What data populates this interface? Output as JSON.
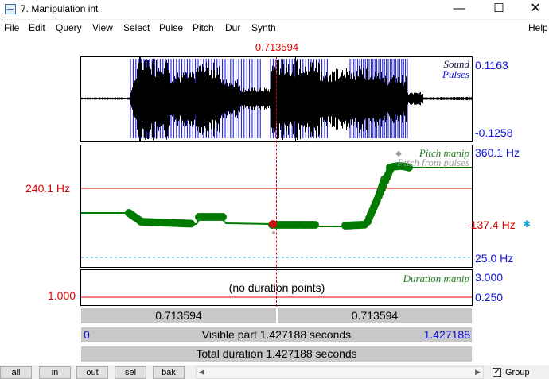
{
  "window": {
    "title": "7. Manipulation int",
    "minimize": "—",
    "maximize": "☐",
    "close": "✕"
  },
  "menu": [
    "File",
    "Edit",
    "Query",
    "View",
    "Select",
    "Pulse",
    "Pitch",
    "Dur",
    "Synth",
    "Help"
  ],
  "cursor_time": "0.713594",
  "sound": {
    "label": "Sound",
    "pulses_label": "Pulses",
    "max": "0.1163",
    "min": "-0.1258"
  },
  "pitch": {
    "label": "Pitch manip",
    "from_pulses_label": "Pitch from pulses",
    "top": "360.1 Hz",
    "bottom": "25.0 Hz",
    "cursor_value": "137.4 Hz",
    "reference": "240.1 Hz"
  },
  "duration": {
    "label": "Duration manip",
    "top": "3.000",
    "bottom": "0.250",
    "reference": "1.000",
    "empty_text": "(no duration points)"
  },
  "bars": {
    "left_segment": "0.713594",
    "right_segment": "0.713594",
    "visible_start": "0",
    "visible_text": "Visible part 1.427188 seconds",
    "visible_end": "1.427188",
    "total_text": "Total duration 1.427188 seconds"
  },
  "bottom": {
    "buttons": [
      "all",
      "in",
      "out",
      "sel",
      "bak"
    ],
    "group_label": "Group",
    "group_checked": true
  },
  "colors": {
    "pitch": "#007a00",
    "reference": "#e00000",
    "pulses": "#1010e0",
    "waveform": "#000000"
  }
}
